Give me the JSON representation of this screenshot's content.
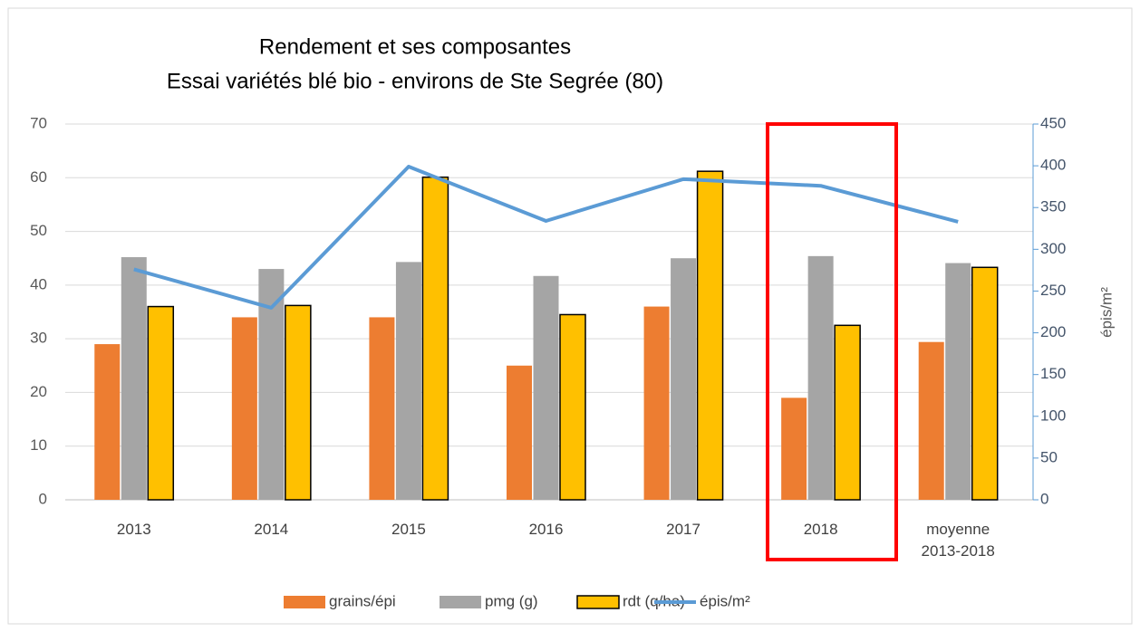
{
  "chart_data": {
    "type": "bar+line",
    "title": "Rendement  et ses composantes",
    "subtitle": "Essai variétés blé bio - environs de Ste Segrée (80)",
    "y2_label": "épis/m²",
    "categories": [
      "2013",
      "2014",
      "2015",
      "2016",
      "2017",
      "2018",
      "moyenne 2013-2018"
    ],
    "series": [
      {
        "name": "grains/épi",
        "type": "bar",
        "color": "#ed7d31",
        "values": [
          29,
          34,
          34,
          25,
          36,
          19,
          29.4
        ]
      },
      {
        "name": "pmg (g)",
        "type": "bar",
        "color": "#a5a5a5",
        "values": [
          45.2,
          43,
          44.3,
          41.7,
          45,
          45.4,
          44.1
        ]
      },
      {
        "name": "rdt (q/ha)",
        "type": "bar",
        "color": "#ffc000",
        "border_color": "#000000",
        "values": [
          36,
          36.2,
          60.1,
          34.5,
          61.2,
          32.5,
          43.3
        ]
      },
      {
        "name": "épis/m²",
        "type": "line",
        "axis": "y2",
        "color": "#5b9bd5",
        "values": [
          276,
          230,
          399,
          334,
          384,
          376,
          333
        ]
      }
    ],
    "ylim": [
      0,
      70
    ],
    "yticks": [
      0,
      10,
      20,
      30,
      40,
      50,
      60,
      70
    ],
    "y2lim": [
      0,
      450
    ],
    "y2ticks": [
      0,
      50,
      100,
      150,
      200,
      250,
      300,
      350,
      400,
      450
    ],
    "grid": true,
    "legend": "bottom"
  }
}
